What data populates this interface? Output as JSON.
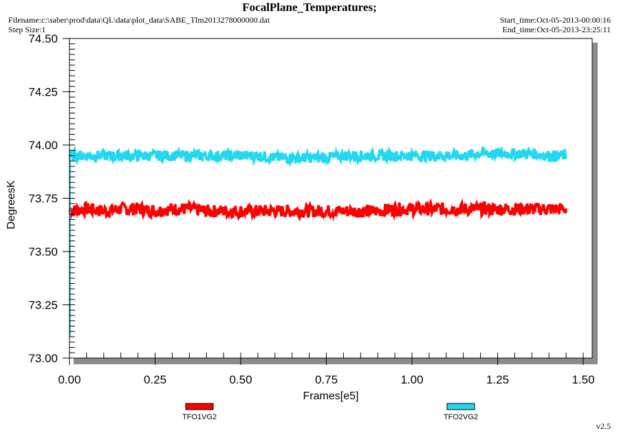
{
  "header": {
    "title": "FocalPlane_Temperatures;",
    "filename": "Filename:c:\\saber\\prod\\data\\QL\\data\\plot_data\\SABE_Tlm2013278000000.dat",
    "step_size": "Step Size:1",
    "start_time": "Start_time:Oct-05-2013-00:00:16",
    "end_time": "End_time:Oct-05-2013-23:25:11"
  },
  "footer": {
    "version": "v2.5"
  },
  "chart_data": {
    "type": "line",
    "title": "FocalPlane_Temperatures;",
    "xlabel": "Frames[e5]",
    "ylabel": "DegreesK",
    "xlim": [
      0.0,
      1.5
    ],
    "ylim": [
      73.0,
      74.5
    ],
    "x_ticks": [
      "0.00",
      "0.25",
      "0.50",
      "0.75",
      "1.00",
      "1.25",
      "1.50"
    ],
    "y_ticks": [
      "73.00",
      "73.25",
      "73.50",
      "73.75",
      "74.00",
      "74.25",
      "74.50"
    ],
    "x_ticks_values": [
      0,
      0.25,
      0.5,
      0.75,
      1.0,
      1.25,
      1.5
    ],
    "y_ticks_values": [
      73.0,
      73.25,
      73.5,
      73.75,
      74.0,
      74.25,
      74.5
    ],
    "grid": false,
    "legend_position": "bottom",
    "series": [
      {
        "name": "TFO1VG2",
        "color": "#ff0000",
        "x": [
          0.0,
          0.05,
          0.1,
          0.15,
          0.2,
          0.25,
          0.3,
          0.35,
          0.4,
          0.45,
          0.5,
          0.55,
          0.6,
          0.65,
          0.7,
          0.75,
          0.8,
          0.85,
          0.9,
          0.95,
          1.0,
          1.05,
          1.1,
          1.15,
          1.2,
          1.25,
          1.3,
          1.35,
          1.4,
          1.45
        ],
        "values": [
          73.69,
          73.7,
          73.69,
          73.7,
          73.7,
          73.69,
          73.7,
          73.7,
          73.69,
          73.69,
          73.69,
          73.69,
          73.69,
          73.69,
          73.69,
          73.69,
          73.69,
          73.69,
          73.69,
          73.7,
          73.7,
          73.7,
          73.7,
          73.7,
          73.7,
          73.7,
          73.7,
          73.7,
          73.7,
          73.7
        ],
        "noise_range": 0.06
      },
      {
        "name": "TFO2VG2",
        "color": "#22d8f0",
        "x": [
          0.0,
          0.05,
          0.1,
          0.15,
          0.2,
          0.25,
          0.3,
          0.35,
          0.4,
          0.45,
          0.5,
          0.55,
          0.6,
          0.65,
          0.7,
          0.75,
          0.8,
          0.85,
          0.9,
          0.95,
          1.0,
          1.05,
          1.1,
          1.15,
          1.2,
          1.25,
          1.3,
          1.35,
          1.4,
          1.45
        ],
        "values": [
          73.95,
          73.95,
          73.95,
          73.95,
          73.95,
          73.95,
          73.95,
          73.95,
          73.95,
          73.95,
          73.95,
          73.95,
          73.94,
          73.94,
          73.94,
          73.94,
          73.95,
          73.95,
          73.95,
          73.95,
          73.95,
          73.95,
          73.95,
          73.95,
          73.96,
          73.96,
          73.96,
          73.96,
          73.95,
          73.95
        ],
        "noise_range": 0.05
      }
    ]
  }
}
